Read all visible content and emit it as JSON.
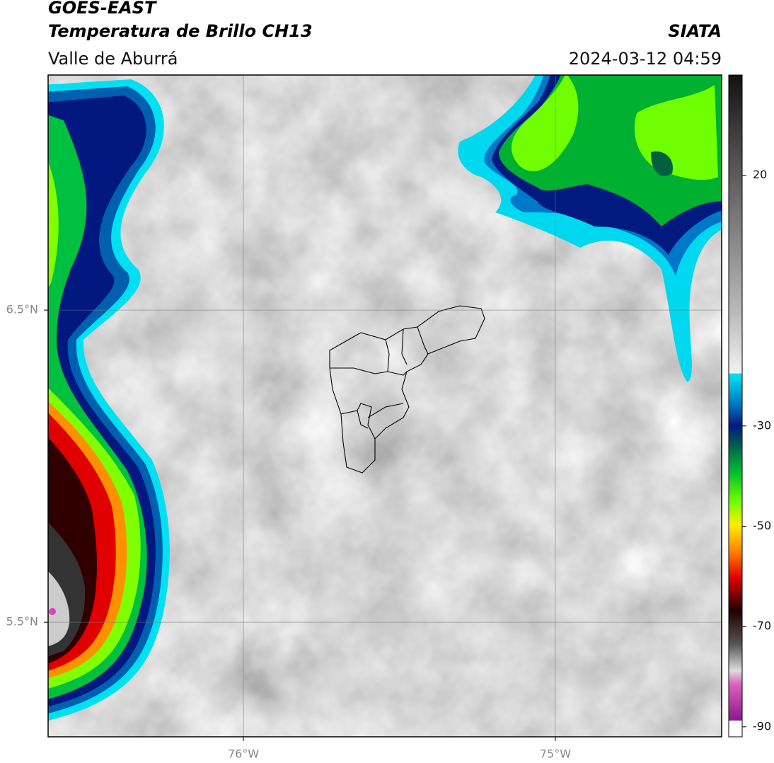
{
  "header": {
    "title": "GOES-EAST",
    "subtitle": "Temperatura de Brillo CH13",
    "region": "Valle de Aburrá",
    "source": "SIATA",
    "timestamp": "2024-03-12 04:59"
  },
  "map": {
    "xlim": [
      -76.626,
      -74.467
    ],
    "ylim": [
      5.133,
      7.253
    ],
    "xticks": [
      {
        "value": -76,
        "label": "76°W"
      },
      {
        "value": -75,
        "label": "75°W"
      }
    ],
    "yticks": [
      {
        "value": 5.5,
        "label": "5.5°N"
      },
      {
        "value": 6.5,
        "label": "6.5°N"
      }
    ],
    "grid": true
  },
  "colorbar": {
    "lim": [
      -92,
      40
    ],
    "ticks": [
      20,
      -30,
      -50,
      -70,
      -90
    ]
  }
}
